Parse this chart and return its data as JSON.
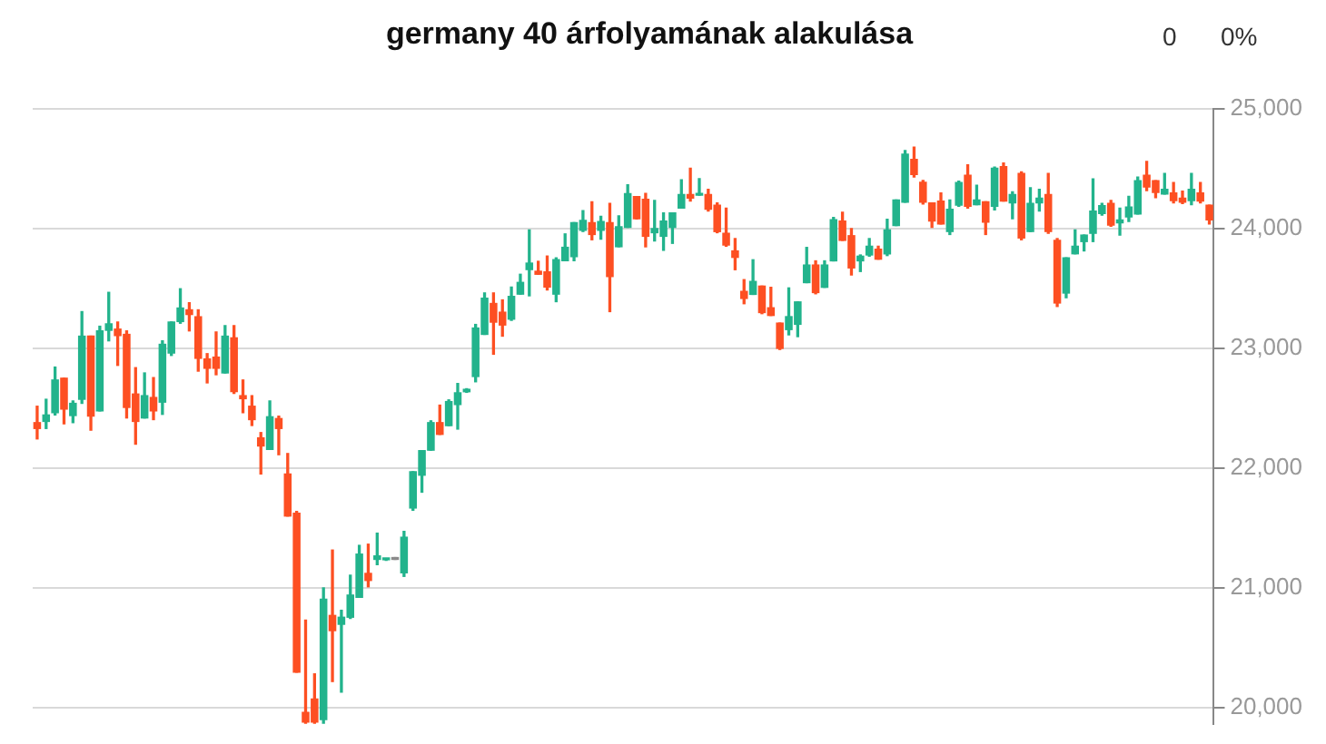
{
  "chart_data": {
    "type": "candlestick",
    "title": "germany 40 árfolyamának alakulása",
    "annotations": [
      "0",
      "0%"
    ],
    "categories": [
      null,
      null,
      null,
      null,
      null,
      null,
      null,
      null,
      null,
      null,
      null,
      null,
      null,
      null,
      null,
      null,
      null,
      null,
      null,
      null,
      null,
      null,
      null,
      null,
      null,
      null,
      null,
      null,
      null,
      null,
      null,
      null,
      null,
      null,
      null,
      null,
      null,
      null,
      null,
      null,
      null,
      null,
      null,
      null,
      null,
      null,
      null,
      null,
      null,
      null,
      null,
      null,
      null,
      null,
      null,
      null,
      null,
      null,
      null,
      null,
      null,
      null,
      null,
      null,
      null,
      null,
      null,
      null,
      null,
      null,
      null,
      null,
      null,
      null,
      null,
      null,
      null,
      null,
      null,
      null,
      null,
      null,
      null,
      null,
      null,
      null,
      null,
      null,
      null,
      null,
      null,
      null,
      null,
      null,
      null,
      null,
      null,
      null,
      null,
      null,
      null,
      null,
      null,
      null,
      null,
      null,
      null,
      null,
      null,
      null,
      null,
      null,
      null,
      null,
      null,
      null,
      null,
      null,
      null,
      null,
      null,
      null,
      null,
      null,
      null,
      null,
      null,
      null,
      null,
      null,
      null,
      null
    ],
    "ohlc": [
      [
        22380,
        22517,
        22244,
        22331
      ],
      [
        22390,
        22575,
        22331,
        22444
      ],
      [
        22463,
        22844,
        22444,
        22736
      ],
      [
        22751,
        22751,
        22370,
        22493
      ],
      [
        22439,
        22561,
        22380,
        22541
      ],
      [
        22575,
        23307,
        22541,
        23102
      ],
      [
        23102,
        23102,
        22317,
        22434
      ],
      [
        22478,
        23185,
        22478,
        23146
      ],
      [
        23151,
        23468,
        23063,
        23205
      ],
      [
        23161,
        23220,
        22858,
        23107
      ],
      [
        23117,
        23146,
        22419,
        22507
      ],
      [
        22619,
        22839,
        22200,
        22390
      ],
      [
        22419,
        22795,
        22419,
        22605
      ],
      [
        22590,
        22756,
        22405,
        22478
      ],
      [
        22551,
        23063,
        22449,
        23034
      ],
      [
        22961,
        23220,
        22941,
        23220
      ],
      [
        23224,
        23498,
        23210,
        23337
      ],
      [
        23322,
        23381,
        23146,
        23283
      ],
      [
        23264,
        23322,
        22810,
        22917
      ],
      [
        22912,
        22956,
        22712,
        22834
      ],
      [
        22927,
        23137,
        22780,
        22834
      ],
      [
        22795,
        23190,
        22795,
        23102
      ],
      [
        23088,
        23190,
        22624,
        22639
      ],
      [
        22605,
        22736,
        22463,
        22580
      ],
      [
        22517,
        22605,
        22356,
        22405
      ],
      [
        22253,
        22297,
        21951,
        22185
      ],
      [
        22156,
        22561,
        22156,
        22429
      ],
      [
        22414,
        22434,
        22112,
        22331
      ],
      [
        21951,
        22122,
        21600,
        21600
      ],
      [
        21624,
        21639,
        20297,
        20297
      ],
      [
        19960,
        20731,
        19870,
        19880
      ],
      [
        20072,
        20282,
        19870,
        19880
      ],
      [
        19900,
        21000,
        19870,
        20906
      ],
      [
        20770,
        21316,
        20218,
        20643
      ],
      [
        20696,
        20813,
        20130,
        20755
      ],
      [
        20755,
        21106,
        20745,
        20940
      ],
      [
        20921,
        21355,
        20921,
        21282
      ],
      [
        21121,
        21365,
        21009,
        21062
      ],
      [
        21238,
        21457,
        21194,
        21267
      ],
      [
        21235,
        21245,
        21230,
        21240
      ],
      [
        21238,
        21238,
        21238,
        21238
      ],
      [
        21126,
        21472,
        21096,
        21423
      ],
      [
        21667,
        21970,
        21648,
        21970
      ],
      [
        21941,
        22146,
        21799,
        22146
      ],
      [
        22150,
        22395,
        22150,
        22380
      ],
      [
        22380,
        22526,
        22282,
        22282
      ],
      [
        22355,
        22570,
        22355,
        22556
      ],
      [
        22531,
        22707,
        22326,
        22629
      ],
      [
        22638,
        22663,
        22633,
        22658
      ],
      [
        22765,
        23200,
        22721,
        23170
      ],
      [
        23117,
        23463,
        23117,
        23419
      ],
      [
        23375,
        23463,
        22951,
        23219
      ],
      [
        23302,
        23405,
        23102,
        23195
      ],
      [
        23244,
        23512,
        23234,
        23434
      ],
      [
        23453,
        23619,
        23453,
        23551
      ],
      [
        23658,
        23990,
        23439,
        23712
      ],
      [
        23644,
        23727,
        23619,
        23619
      ],
      [
        23639,
        23771,
        23488,
        23512
      ],
      [
        23453,
        23756,
        23390,
        23741
      ],
      [
        23732,
        23956,
        23732,
        23844
      ],
      [
        23766,
        24049,
        23732,
        24049
      ],
      [
        23985,
        24151,
        23976,
        24068
      ],
      [
        24049,
        24224,
        23907,
        23951
      ],
      [
        23985,
        24102,
        23912,
        24059
      ],
      [
        24049,
        24210,
        23307,
        23600
      ],
      [
        23849,
        24107,
        23849,
        24015
      ],
      [
        24010,
        24366,
        24010,
        24293
      ],
      [
        24268,
        24268,
        24080,
        24083
      ],
      [
        24245,
        24294,
        23848,
        23936
      ],
      [
        23966,
        24235,
        23897,
        24000
      ],
      [
        23936,
        24132,
        23819,
        24064
      ],
      [
        24010,
        24132,
        23877,
        24132
      ],
      [
        24171,
        24407,
        24171,
        24284
      ],
      [
        24284,
        24505,
        24230,
        24255
      ],
      [
        24279,
        24417,
        24279,
        24289
      ],
      [
        24284,
        24328,
        24147,
        24162
      ],
      [
        24196,
        24215,
        23966,
        23975
      ],
      [
        23961,
        24171,
        23853,
        23863
      ],
      [
        23814,
        23917,
        23657,
        23760
      ],
      [
        23476,
        23574,
        23373,
        23417
      ],
      [
        23451,
        23740,
        23451,
        23559
      ],
      [
        23520,
        23520,
        23290,
        23299
      ],
      [
        23339,
        23510,
        23275,
        23275
      ],
      [
        23211,
        23211,
        22991,
        23000
      ],
      [
        23157,
        23505,
        23113,
        23265
      ],
      [
        23201,
        23388,
        23098,
        23388
      ],
      [
        23549,
        23843,
        23549,
        23696
      ],
      [
        23696,
        23731,
        23456,
        23466
      ],
      [
        23510,
        23731,
        23510,
        23696
      ],
      [
        23731,
        24093,
        23731,
        24074
      ],
      [
        24064,
        24137,
        23902,
        23902
      ],
      [
        23941,
        24000,
        23613,
        23672
      ],
      [
        23731,
        23780,
        23642,
        23770
      ],
      [
        23780,
        23917,
        23770,
        23853
      ],
      [
        23828,
        23853,
        23745,
        23745
      ],
      [
        23789,
        24078,
        23775,
        23990
      ],
      [
        24025,
        24240,
        24025,
        24240
      ],
      [
        24220,
        24652,
        24220,
        24622
      ],
      [
        24578,
        24681,
        24431,
        24451
      ],
      [
        24387,
        24402,
        24206,
        24220
      ],
      [
        24215,
        24215,
        24010,
        24064
      ],
      [
        24230,
        24298,
        24039,
        24039
      ],
      [
        23976,
        24240,
        23951,
        24161
      ],
      [
        24196,
        24396,
        24186,
        24386
      ],
      [
        24445,
        24533,
        24171,
        24186
      ],
      [
        24200,
        24362,
        24200,
        24240
      ],
      [
        24225,
        24225,
        23951,
        24054
      ],
      [
        24186,
        24513,
        24156,
        24504
      ],
      [
        24518,
        24548,
        24230,
        24230
      ],
      [
        24215,
        24308,
        24083,
        24284
      ],
      [
        24460,
        24474,
        23907,
        23922
      ],
      [
        23976,
        24342,
        23976,
        24210
      ],
      [
        24215,
        24328,
        24147,
        24254
      ],
      [
        24284,
        24460,
        23961,
        23976
      ],
      [
        23902,
        23917,
        23350,
        23379
      ],
      [
        23462,
        23756,
        23423,
        23756
      ],
      [
        23790,
        23990,
        23790,
        23853
      ],
      [
        23892,
        23946,
        23814,
        23946
      ],
      [
        23961,
        24416,
        23892,
        24147
      ],
      [
        24127,
        24210,
        24112,
        24191
      ],
      [
        24210,
        24235,
        24020,
        24029
      ],
      [
        24049,
        24171,
        23946,
        24073
      ],
      [
        24098,
        24269,
        24059,
        24181
      ],
      [
        24122,
        24430,
        24122,
        24401
      ],
      [
        24445,
        24562,
        24318,
        24347
      ],
      [
        24401,
        24401,
        24259,
        24303
      ],
      [
        24289,
        24460,
        24289,
        24328
      ],
      [
        24298,
        24386,
        24215,
        24235
      ],
      [
        24254,
        24313,
        24210,
        24220
      ],
      [
        24235,
        24460,
        24200,
        24328
      ],
      [
        24298,
        24386,
        24215,
        24230
      ],
      [
        24196,
        24196,
        24039,
        24073
      ]
    ],
    "colors": [
      "#fd4f22",
      "#22b38c",
      "#22b38c",
      "#fd4f22",
      "#22b38c",
      "#22b38c",
      "#fd4f22",
      "#22b38c",
      "#22b38c",
      "#fd4f22",
      "#fd4f22",
      "#fd4f22",
      "#22b38c",
      "#fd4f22",
      "#22b38c",
      "#22b38c",
      "#22b38c",
      "#fd4f22",
      "#fd4f22",
      "#fd4f22",
      "#fd4f22",
      "#22b38c",
      "#fd4f22",
      "#fd4f22",
      "#fd4f22",
      "#fd4f22",
      "#22b38c",
      "#fd4f22",
      "#fd4f22",
      "#fd4f22",
      "#fd4f22",
      "#fd4f22",
      "#22b38c",
      "#fd4f22",
      "#22b38c",
      "#22b38c",
      "#22b38c",
      "#fd4f22",
      "#22b38c",
      "#22b38c",
      "#8a8a8a",
      "#22b38c",
      "#22b38c",
      "#22b38c",
      "#22b38c",
      "#fd4f22",
      "#22b38c",
      "#22b38c",
      "#22b38c",
      "#22b38c",
      "#22b38c",
      "#fd4f22",
      "#fd4f22",
      "#22b38c",
      "#22b38c",
      "#22b38c",
      "#fd4f22",
      "#fd4f22",
      "#22b38c",
      "#22b38c",
      "#22b38c",
      "#22b38c",
      "#fd4f22",
      "#22b38c",
      "#fd4f22",
      "#22b38c",
      "#22b38c",
      "#fd4f22",
      "#fd4f22",
      "#22b38c",
      "#22b38c",
      "#22b38c",
      "#22b38c",
      "#fd4f22",
      "#22b38c",
      "#fd4f22",
      "#fd4f22",
      "#fd4f22",
      "#fd4f22",
      "#fd4f22",
      "#22b38c",
      "#fd4f22",
      "#fd4f22",
      "#fd4f22",
      "#22b38c",
      "#22b38c",
      "#22b38c",
      "#fd4f22",
      "#22b38c",
      "#22b38c",
      "#fd4f22",
      "#fd4f22",
      "#22b38c",
      "#22b38c",
      "#fd4f22",
      "#22b38c",
      "#22b38c",
      "#22b38c",
      "#fd4f22",
      "#fd4f22",
      "#fd4f22",
      "#fd4f22",
      "#22b38c",
      "#22b38c",
      "#fd4f22",
      "#22b38c",
      "#fd4f22",
      "#22b38c",
      "#fd4f22",
      "#22b38c",
      "#fd4f22",
      "#22b38c",
      "#22b38c",
      "#fd4f22",
      "#fd4f22",
      "#22b38c",
      "#22b38c",
      "#22b38c",
      "#22b38c",
      "#22b38c",
      "#fd4f22",
      "#22b38c",
      "#22b38c",
      "#22b38c",
      "#fd4f22",
      "#fd4f22",
      "#22b38c",
      "#fd4f22",
      "#fd4f22",
      "#22b38c",
      "#fd4f22",
      "#fd4f22"
    ],
    "ylim": [
      19860,
      25000
    ],
    "yticks": [
      {
        "value": 20000,
        "label": "20,000"
      },
      {
        "value": 21000,
        "label": "21,000"
      },
      {
        "value": 22000,
        "label": "22,000"
      },
      {
        "value": 23000,
        "label": "23,000"
      },
      {
        "value": 24000,
        "label": "24,000"
      },
      {
        "value": 25000,
        "label": "25,000"
      }
    ],
    "grid": "y",
    "tick_labels": "y"
  }
}
